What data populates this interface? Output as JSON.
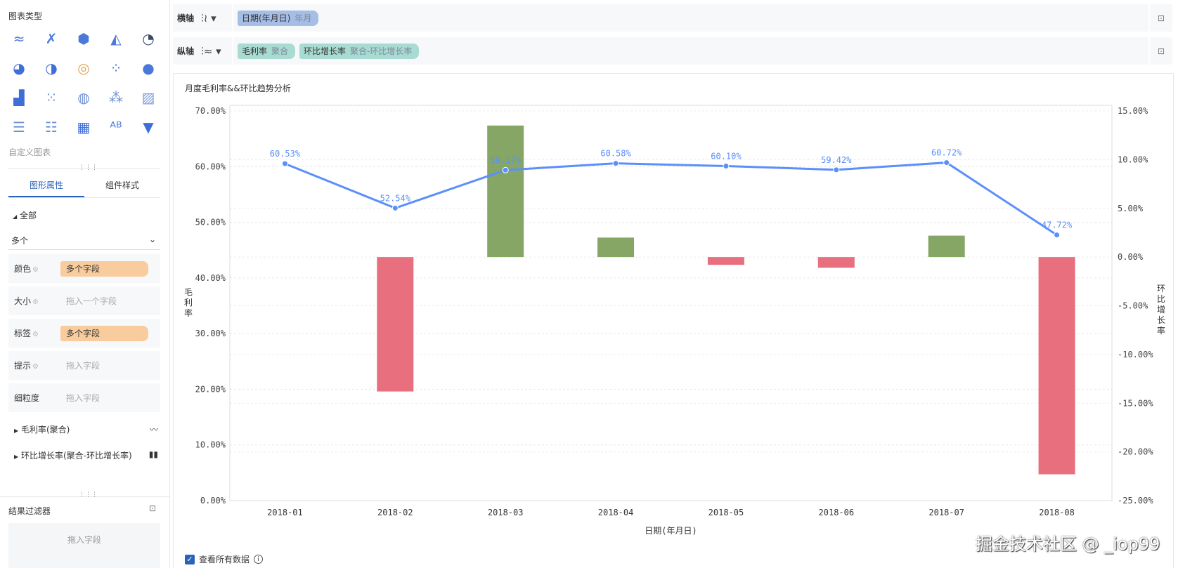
{
  "left": {
    "chart_types_title": "图表类型",
    "chart_type_icons": [
      "line-chart-icon",
      "cross-line-icon",
      "hexagon-map-icon",
      "area-chart-icon",
      "gauge-icon",
      "pie-chart-icon",
      "rose-chart-icon",
      "radial-chart-icon",
      "scatter-icon",
      "bubble-icon",
      "china-map-icon",
      "point-map-icon",
      "flow-map-icon",
      "heat-map-icon",
      "region-map-icon",
      "ranking-list-icon",
      "detail-list-icon",
      "treemap-icon",
      "word-cloud-icon",
      "funnel-icon"
    ],
    "custom_chart": "自定义图表",
    "tabs": [
      {
        "label": "图形属性"
      },
      {
        "label": "组件样式"
      }
    ],
    "all_label": "全部",
    "select_value": "多个",
    "rows": [
      {
        "label": "颜色",
        "value": "多个字段",
        "filled": true
      },
      {
        "label": "大小",
        "value": "拖入一个字段",
        "filled": false
      },
      {
        "label": "标签",
        "value": "多个字段",
        "filled": true
      },
      {
        "label": "提示",
        "value": "拖入字段",
        "filled": false
      },
      {
        "label": "细粒度",
        "value": "拖入字段",
        "filled": false
      }
    ],
    "series": [
      {
        "label": "毛利率(聚合)",
        "icon": "line-icon"
      },
      {
        "label": "环比增长率(聚合-环比增长率)",
        "icon": "bar-icon"
      }
    ],
    "filter_title": "结果过滤器",
    "filter_placeholder": "拖入字段"
  },
  "shelves": {
    "x": {
      "label": "横轴",
      "chips": [
        {
          "name": "日期(年月日)",
          "sub": "年月",
          "color": "#a6bde6"
        }
      ]
    },
    "y": {
      "label": "纵轴",
      "chips": [
        {
          "name": "毛利率",
          "sub": "聚合",
          "color": "#a8dcd2"
        },
        {
          "name": "环比增长率",
          "sub": "聚合-环比增长率",
          "color": "#a8dcd2"
        }
      ]
    }
  },
  "chart_data": {
    "type": "bar+line",
    "title": "月度毛利率&&环比趋势分析",
    "categories": [
      "2018-01",
      "2018-02",
      "2018-03",
      "2018-04",
      "2018-05",
      "2018-06",
      "2018-07",
      "2018-08"
    ],
    "xlabel": "日期(年月日)",
    "ylabel_left": "毛利率",
    "ylabel_right": "环比增长率",
    "y_left_ticks": [
      "0.00%",
      "10.00%",
      "20.00%",
      "30.00%",
      "40.00%",
      "50.00%",
      "60.00%",
      "70.00%"
    ],
    "y_right_ticks": [
      "15.00%",
      "10.00%",
      "5.00%",
      "0.00%",
      "-5.00%",
      "-10.00%",
      "-15.00%",
      "-20.00%",
      "-25.00%"
    ],
    "ylim_left": [
      0,
      70
    ],
    "ylim_right": [
      -25,
      15
    ],
    "series": [
      {
        "name": "毛利率",
        "type": "line",
        "axis": "left",
        "values": [
          60.53,
          52.54,
          59.37,
          60.58,
          60.1,
          59.42,
          60.72,
          47.72
        ],
        "labels": [
          "60.53%",
          "52.54%",
          "59.37%",
          "60.58%",
          "60.10%",
          "59.42%",
          "60.72%",
          "47.72%"
        ],
        "color": "#5b8ff9"
      },
      {
        "name": "环比增长率",
        "type": "bar",
        "axis": "right",
        "values": [
          null,
          -13.8,
          13.5,
          2.0,
          -0.8,
          -1.1,
          2.2,
          -22.3
        ],
        "pos_color": "#86a666",
        "neg_color": "#e8707e"
      }
    ]
  },
  "footer": {
    "show_all": "查看所有数据",
    "watermark": "掘金技术社区 @ _iop99"
  }
}
